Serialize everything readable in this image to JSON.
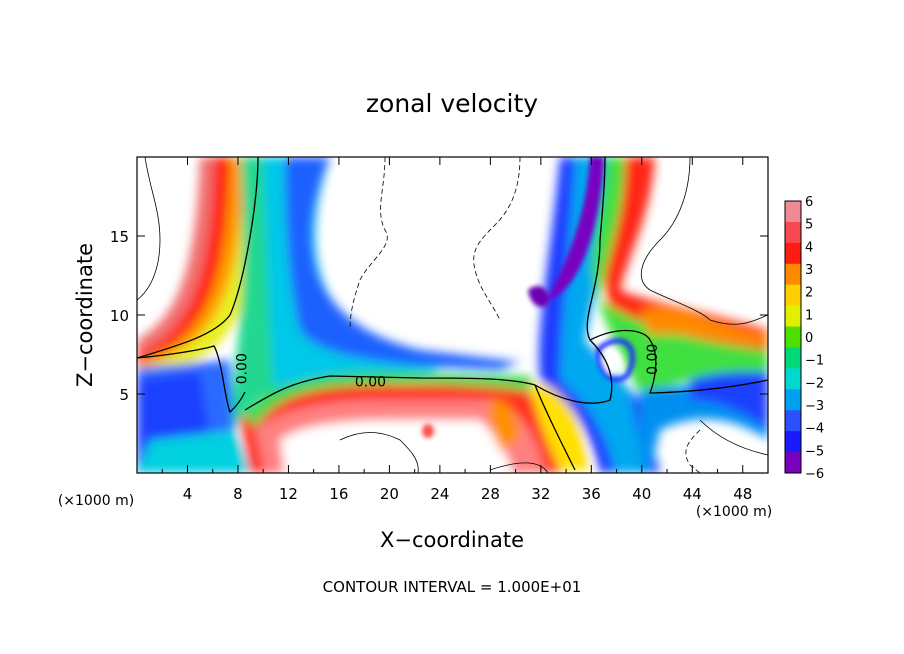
{
  "chart_data": {
    "type": "heatmap",
    "title": "zonal velocity",
    "xlabel": "X−coordinate",
    "ylabel": "Z−coordinate",
    "x_unit_left": "(×1000 m)",
    "x_unit_right": "(×1000 m)",
    "xlim": [
      0,
      50
    ],
    "ylim": [
      0,
      20
    ],
    "x_ticks": [
      4,
      8,
      12,
      16,
      20,
      24,
      28,
      32,
      36,
      40,
      44,
      48
    ],
    "y_ticks": [
      5,
      10,
      15
    ],
    "colorbar": {
      "min": -6,
      "max": 6,
      "ticks": [
        "6",
        "5",
        "4",
        "3",
        "2",
        "1",
        "0",
        "−1",
        "−2",
        "−3",
        "−4",
        "−5",
        "−6"
      ],
      "colors": [
        "#ef8a92",
        "#f74a50",
        "#ff1c10",
        "#ff8a00",
        "#ffd000",
        "#e0f000",
        "#50e000",
        "#00d87a",
        "#00d8d0",
        "#00a0f0",
        "#2a50ff",
        "#1a1aff",
        "#7a00c0"
      ]
    },
    "contour_labels": [
      {
        "text": "0.00",
        "x": 18.5,
        "z": 5.8,
        "rotate": 0
      },
      {
        "text": "0.00",
        "x": 8.3,
        "z": 6.6,
        "rotate": -90
      },
      {
        "text": "0.00",
        "x": 40.8,
        "z": 7.2,
        "rotate": -90
      }
    ],
    "footer": "CONTOUR INTERVAL = 1.000E+01"
  }
}
